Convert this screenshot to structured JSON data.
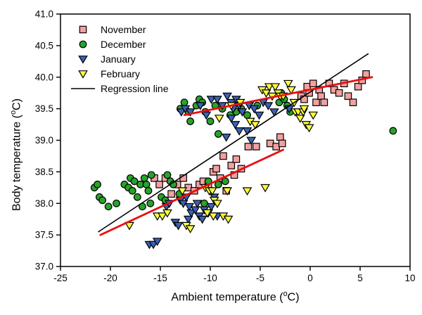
{
  "chart_data": {
    "type": "scatter",
    "title": "",
    "xlabel": {
      "pre": "Ambient temperature (",
      "sup": "o",
      "post": "C)"
    },
    "ylabel": {
      "pre": "Body temperature (",
      "sup": "o",
      "post": "C)"
    },
    "xlim": [
      -25,
      10
    ],
    "ylim": [
      37.0,
      41.0
    ],
    "grid": false,
    "x_ticks": [
      -25,
      -20,
      -15,
      -10,
      -5,
      0,
      5,
      10
    ],
    "y_ticks": [
      37.0,
      37.5,
      38.0,
      38.5,
      39.0,
      39.5,
      40.0,
      40.5,
      41.0
    ],
    "x_tick_labels": [
      "-25",
      "-20",
      "-15",
      "-10",
      "-5",
      "0",
      "5",
      "10"
    ],
    "y_tick_labels": [
      "37.0",
      "37.5",
      "38.0",
      "38.5",
      "39.0",
      "39.5",
      "40.0",
      "40.5",
      "41.0"
    ],
    "marker_edge_color": "#000000",
    "series": [
      {
        "name": "November",
        "marker": "square",
        "fill": "#F2A0A0",
        "points": [
          [
            -15.6,
            38.4
          ],
          [
            -15.1,
            38.3
          ],
          [
            -14.5,
            38.4
          ],
          [
            -13.9,
            38.15
          ],
          [
            -13.3,
            38.3
          ],
          [
            -12.7,
            38.4
          ],
          [
            -12.2,
            38.25
          ],
          [
            -11.6,
            38.2
          ],
          [
            -11.1,
            38.3
          ],
          [
            -10.7,
            38.35
          ],
          [
            -10.2,
            38.3
          ],
          [
            -9.7,
            38.5
          ],
          [
            -9.4,
            38.55
          ],
          [
            -9.0,
            38.4
          ],
          [
            -8.7,
            38.75
          ],
          [
            -8.4,
            38.2
          ],
          [
            -7.9,
            38.6
          ],
          [
            -7.6,
            38.45
          ],
          [
            -7.4,
            38.7
          ],
          [
            -6.9,
            38.55
          ],
          [
            -6.2,
            38.9
          ],
          [
            -5.4,
            38.9
          ],
          [
            -4.0,
            38.95
          ],
          [
            -3.4,
            38.9
          ],
          [
            -3.0,
            39.05
          ],
          [
            -2.8,
            38.95
          ],
          [
            -0.9,
            39.7
          ],
          [
            -0.6,
            39.65
          ],
          [
            -0.3,
            39.85
          ],
          [
            -0.1,
            39.75
          ],
          [
            0.3,
            39.9
          ],
          [
            0.6,
            39.6
          ],
          [
            0.9,
            39.8
          ],
          [
            1.1,
            39.7
          ],
          [
            1.4,
            39.6
          ],
          [
            1.9,
            39.9
          ],
          [
            2.4,
            39.8
          ],
          [
            2.9,
            39.75
          ],
          [
            3.4,
            39.9
          ],
          [
            3.8,
            39.7
          ],
          [
            4.3,
            39.6
          ],
          [
            4.8,
            39.85
          ],
          [
            5.2,
            39.95
          ],
          [
            5.6,
            40.05
          ]
        ]
      },
      {
        "name": "December",
        "marker": "circle",
        "fill": "#27A32B",
        "points": [
          [
            -21.6,
            38.25
          ],
          [
            -21.3,
            38.3
          ],
          [
            -21.1,
            38.1
          ],
          [
            -20.8,
            38.05
          ],
          [
            -20.2,
            37.95
          ],
          [
            -19.4,
            38.0
          ],
          [
            -18.6,
            38.3
          ],
          [
            -18.2,
            38.25
          ],
          [
            -18.0,
            38.4
          ],
          [
            -17.8,
            38.2
          ],
          [
            -17.6,
            38.35
          ],
          [
            -17.3,
            38.1
          ],
          [
            -17.0,
            38.3
          ],
          [
            -16.8,
            37.95
          ],
          [
            -16.6,
            38.4
          ],
          [
            -16.4,
            38.3
          ],
          [
            -16.2,
            38.2
          ],
          [
            -16.0,
            38.0
          ],
          [
            -15.9,
            38.45
          ],
          [
            -14.9,
            38.1
          ],
          [
            -14.5,
            38.05
          ],
          [
            -14.3,
            38.45
          ],
          [
            -14.0,
            38.35
          ],
          [
            -13.7,
            38.3
          ],
          [
            -13.1,
            38.15
          ],
          [
            -10.6,
            38.0
          ],
          [
            -10.2,
            38.35
          ],
          [
            -9.2,
            38.3
          ],
          [
            -8.5,
            38.35
          ],
          [
            -13.0,
            39.5
          ],
          [
            -12.6,
            39.6
          ],
          [
            -12.2,
            39.45
          ],
          [
            -12.0,
            39.3
          ],
          [
            -11.4,
            39.55
          ],
          [
            -11.1,
            39.65
          ],
          [
            -10.8,
            39.6
          ],
          [
            -10.5,
            39.45
          ],
          [
            -10.0,
            39.3
          ],
          [
            -9.5,
            39.55
          ],
          [
            -9.2,
            39.1
          ],
          [
            -8.8,
            39.5
          ],
          [
            -8.0,
            39.4
          ],
          [
            -7.4,
            39.45
          ],
          [
            -6.9,
            39.5
          ],
          [
            -6.3,
            39.4
          ],
          [
            -5.3,
            39.55
          ],
          [
            -3.1,
            39.6
          ],
          [
            -2.9,
            39.75
          ],
          [
            -2.6,
            39.65
          ],
          [
            -2.3,
            39.55
          ],
          [
            -2.0,
            39.45
          ],
          [
            8.3,
            39.15
          ]
        ]
      },
      {
        "name": "January",
        "marker": "triangle-down",
        "fill": "#3A62B5",
        "points": [
          [
            -16.1,
            37.35
          ],
          [
            -15.7,
            37.35
          ],
          [
            -15.3,
            37.4
          ],
          [
            -14.4,
            37.95
          ],
          [
            -14.1,
            38.0
          ],
          [
            -13.5,
            37.7
          ],
          [
            -13.2,
            37.65
          ],
          [
            -13.0,
            38.05
          ],
          [
            -12.7,
            38.0
          ],
          [
            -12.4,
            38.1
          ],
          [
            -12.2,
            37.75
          ],
          [
            -12.1,
            37.95
          ],
          [
            -11.9,
            37.85
          ],
          [
            -11.5,
            37.9
          ],
          [
            -11.3,
            38.0
          ],
          [
            -11.1,
            37.8
          ],
          [
            -10.8,
            37.75
          ],
          [
            -10.6,
            37.9
          ],
          [
            -10.2,
            37.85
          ],
          [
            -9.9,
            37.95
          ],
          [
            -9.6,
            38.1
          ],
          [
            -9.3,
            37.8
          ],
          [
            -8.4,
            39.05
          ],
          [
            -5.9,
            39.0
          ],
          [
            -12.9,
            39.45
          ],
          [
            -12.5,
            39.5
          ],
          [
            -12.0,
            39.45
          ],
          [
            -11.0,
            39.55
          ],
          [
            -10.4,
            39.4
          ],
          [
            -9.9,
            39.65
          ],
          [
            -9.3,
            39.65
          ],
          [
            -8.8,
            39.55
          ],
          [
            -8.3,
            39.7
          ],
          [
            -7.9,
            39.6
          ],
          [
            -7.7,
            39.5
          ],
          [
            -7.4,
            39.65
          ],
          [
            -7.1,
            39.55
          ],
          [
            -6.8,
            39.45
          ],
          [
            -7.9,
            39.35
          ],
          [
            -7.5,
            39.25
          ],
          [
            -7.1,
            39.15
          ],
          [
            -6.3,
            39.15
          ],
          [
            -6.1,
            39.55
          ],
          [
            -5.6,
            39.5
          ],
          [
            -5.1,
            39.4
          ],
          [
            -4.7,
            39.6
          ],
          [
            -4.2,
            39.55
          ],
          [
            -3.6,
            39.45
          ],
          [
            -2.1,
            39.5
          ]
        ]
      },
      {
        "name": "February",
        "marker": "triangle-down",
        "fill": "#FFFF3C",
        "points": [
          [
            -18.1,
            37.65
          ],
          [
            -15.3,
            37.8
          ],
          [
            -14.8,
            37.8
          ],
          [
            -14.3,
            37.85
          ],
          [
            -12.8,
            38.2
          ],
          [
            -12.4,
            37.65
          ],
          [
            -12.0,
            37.6
          ],
          [
            -10.5,
            38.25
          ],
          [
            -10.1,
            38.2
          ],
          [
            -9.8,
            38.2
          ],
          [
            -9.6,
            38.05
          ],
          [
            -9.3,
            38.0
          ],
          [
            -10.3,
            37.85
          ],
          [
            -9.7,
            37.8
          ],
          [
            -8.7,
            37.8
          ],
          [
            -8.2,
            37.75
          ],
          [
            -8.3,
            38.2
          ],
          [
            -6.3,
            38.2
          ],
          [
            -4.5,
            38.25
          ],
          [
            -9.1,
            39.35
          ],
          [
            -7.9,
            39.55
          ],
          [
            -7.0,
            39.6
          ],
          [
            -6.0,
            39.3
          ],
          [
            -5.5,
            39.25
          ],
          [
            -4.8,
            39.8
          ],
          [
            -4.4,
            39.75
          ],
          [
            -4.1,
            39.85
          ],
          [
            -3.8,
            39.7
          ],
          [
            -3.5,
            39.85
          ],
          [
            -3.2,
            39.75
          ],
          [
            -3.0,
            39.7
          ],
          [
            -2.7,
            39.7
          ],
          [
            -2.2,
            39.9
          ],
          [
            -1.9,
            39.8
          ],
          [
            -1.6,
            39.6
          ],
          [
            -1.5,
            39.45
          ],
          [
            -1.2,
            39.45
          ],
          [
            -1.0,
            39.35
          ],
          [
            -0.7,
            39.45
          ],
          [
            -0.4,
            39.25
          ],
          [
            -0.1,
            39.2
          ],
          [
            -0.6,
            39.5
          ],
          [
            0.3,
            39.4
          ]
        ]
      }
    ],
    "lines": [
      {
        "name": "regression-line-black",
        "color": "#000000",
        "width": 1.6,
        "x1": -21.2,
        "y1": 37.55,
        "x2": 5.8,
        "y2": 40.37
      },
      {
        "name": "regression-line-red-lower",
        "color": "#E80F0F",
        "width": 2.8,
        "x1": -21.0,
        "y1": 37.5,
        "x2": -2.7,
        "y2": 38.85
      },
      {
        "name": "regression-line-red-upper",
        "color": "#E80F0F",
        "width": 2.8,
        "x1": -12.6,
        "y1": 39.4,
        "x2": 6.2,
        "y2": 40.0
      }
    ],
    "legend": {
      "position": "top-left-inside",
      "items": [
        {
          "label": "November"
        },
        {
          "label": "December"
        },
        {
          "label": "January"
        },
        {
          "label": "February"
        },
        {
          "label": "Regression line"
        }
      ]
    }
  }
}
